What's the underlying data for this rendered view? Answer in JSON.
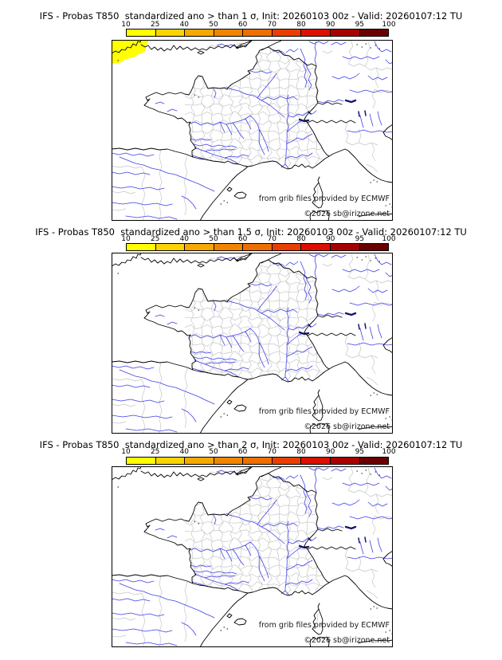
{
  "panels": [
    {
      "title": "IFS - Probas T850  standardized ano > than 1 σ, Init: 20260103 00z - Valid: 20260107:12 TU",
      "threshold_sigma": "1",
      "highlight_patch": true,
      "highlight_patch_value_range": "10-25"
    },
    {
      "title": "IFS - Probas T850  standardized ano > than 1.5 σ, Init: 20260103 00z - Valid: 20260107:12 TU",
      "threshold_sigma": "1.5",
      "highlight_patch": false
    },
    {
      "title": "IFS - Probas T850  standardized ano > than 2 σ, Init: 20260103 00z - Valid: 20260107:12 TU",
      "threshold_sigma": "2",
      "highlight_patch": false
    }
  ],
  "colorbar": {
    "tick_labels": [
      "10",
      "25",
      "40",
      "50",
      "60",
      "70",
      "80",
      "90",
      "95",
      "100"
    ],
    "colors": [
      "#ffff00",
      "#f9d400",
      "#f6a900",
      "#f28500",
      "#ee6f00",
      "#ea3e00",
      "#dd0f00",
      "#a80000",
      "#6b0000"
    ]
  },
  "map_credit": {
    "line1": "from grib files provided by ECMWF",
    "line2": "©2026 sb@irizone.net"
  },
  "map_colors": {
    "coastline": "#000000",
    "rivers": "#4040e8",
    "admin_borders": "#c6c6c6",
    "lakes": "#16166b",
    "highlight": "#ffff00"
  }
}
